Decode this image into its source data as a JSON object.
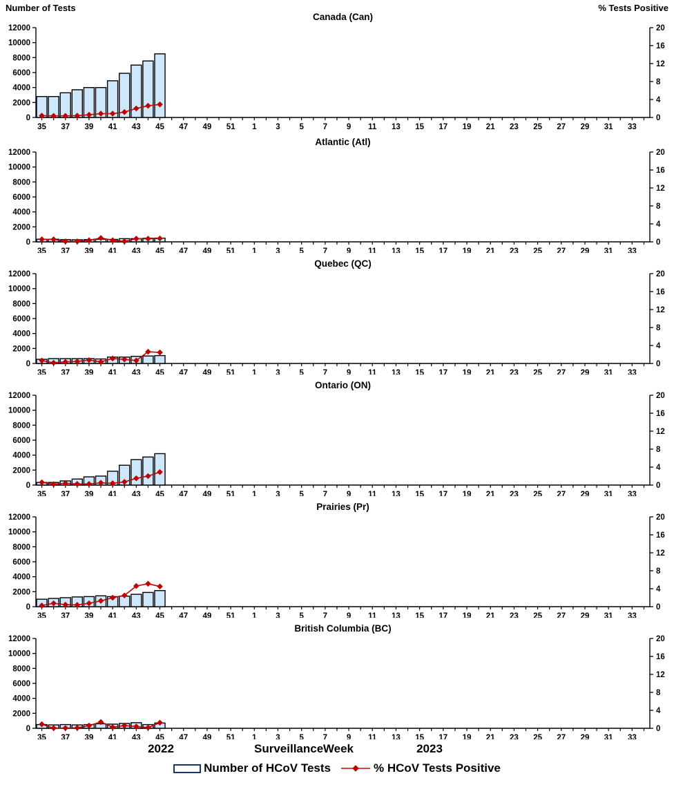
{
  "header": {
    "left_axis_title": "Number of Tests",
    "right_axis_title": "% Tests Positive"
  },
  "footer": {
    "year_left": "2022",
    "xaxis_title": "Surveillance Week",
    "year_right": "2023"
  },
  "legend": {
    "bars_label": "Number of HCoV Tests",
    "line_label": "% HCoV Tests Positive"
  },
  "colors": {
    "bar_fill": "#cfe7fa",
    "bar_border": "#000000",
    "line": "#c00000",
    "axis": "#000000",
    "text": "#000000"
  },
  "axes": {
    "week_sequence": [
      35,
      36,
      37,
      38,
      39,
      40,
      41,
      42,
      43,
      44,
      45,
      46,
      47,
      48,
      49,
      50,
      51,
      52,
      1,
      2,
      3,
      4,
      5,
      6,
      7,
      8,
      9,
      10,
      11,
      12,
      13,
      14,
      15,
      16,
      17,
      18,
      19,
      20,
      21,
      22,
      23,
      24,
      25,
      26,
      27,
      28,
      29,
      30,
      31,
      32,
      33,
      34
    ],
    "left_axis": {
      "label": "Number of Tests",
      "min": 0,
      "max": 12000,
      "step": 2000
    },
    "right_axis": {
      "label": "% Tests Positive",
      "min": 0,
      "max": 20,
      "step": 4
    }
  },
  "chart_data": [
    {
      "type": "bar-line",
      "title": "Canada (Can)",
      "weeks": [
        35,
        36,
        37,
        38,
        39,
        40,
        41,
        42,
        43,
        44,
        45
      ],
      "tests": [
        2800,
        2800,
        3300,
        3700,
        4000,
        4000,
        4900,
        5900,
        7000,
        7550,
        8500
      ],
      "pct_positive": [
        0.4,
        0.35,
        0.35,
        0.4,
        0.6,
        0.85,
        0.85,
        1.2,
        2.0,
        2.6,
        2.9
      ]
    },
    {
      "type": "bar-line",
      "title": "Atlantic (Atl)",
      "weeks": [
        35,
        36,
        37,
        38,
        39,
        40,
        41,
        42,
        43,
        44,
        45
      ],
      "tests": [
        350,
        350,
        300,
        280,
        300,
        350,
        320,
        420,
        420,
        480,
        500
      ],
      "pct_positive": [
        0.55,
        0.55,
        0.1,
        0.1,
        0.35,
        0.85,
        0.35,
        0.1,
        0.7,
        0.7,
        0.75
      ]
    },
    {
      "type": "bar-line",
      "title": "Quebec (QC)",
      "weeks": [
        35,
        36,
        37,
        38,
        39,
        40,
        41,
        42,
        43,
        44,
        45
      ],
      "tests": [
        550,
        650,
        650,
        650,
        650,
        600,
        850,
        850,
        950,
        1000,
        1050
      ],
      "pct_positive": [
        0.65,
        0.15,
        0.35,
        0.45,
        0.75,
        0.35,
        1.1,
        0.9,
        0.65,
        2.6,
        2.45
      ]
    },
    {
      "type": "bar-line",
      "title": "Ontario (ON)",
      "weeks": [
        35,
        36,
        37,
        38,
        39,
        40,
        41,
        42,
        43,
        44,
        45
      ],
      "tests": [
        350,
        350,
        550,
        800,
        1100,
        1200,
        1850,
        2650,
        3400,
        3750,
        4200
      ],
      "pct_positive": [
        0.6,
        0.2,
        0.4,
        0.25,
        0.25,
        0.5,
        0.4,
        0.7,
        1.5,
        2.0,
        2.9
      ]
    },
    {
      "type": "bar-line",
      "title": "Prairies (Pr)",
      "weeks": [
        35,
        36,
        37,
        38,
        39,
        40,
        41,
        42,
        43,
        44,
        45
      ],
      "tests": [
        1000,
        1100,
        1200,
        1300,
        1350,
        1450,
        1350,
        1400,
        1650,
        1900,
        2150
      ],
      "pct_positive": [
        0.25,
        0.75,
        0.45,
        0.4,
        0.75,
        1.3,
        2.0,
        2.5,
        4.6,
        5.1,
        4.5
      ]
    },
    {
      "type": "bar-line",
      "title": "British Columbia (BC)",
      "weeks": [
        35,
        36,
        37,
        38,
        39,
        40,
        41,
        42,
        43,
        44,
        45
      ],
      "tests": [
        500,
        450,
        500,
        450,
        500,
        600,
        550,
        650,
        750,
        500,
        700
      ],
      "pct_positive": [
        0.9,
        0.05,
        0.05,
        0.1,
        0.6,
        1.4,
        0.25,
        0.6,
        0.4,
        0.15,
        1.25
      ]
    }
  ]
}
